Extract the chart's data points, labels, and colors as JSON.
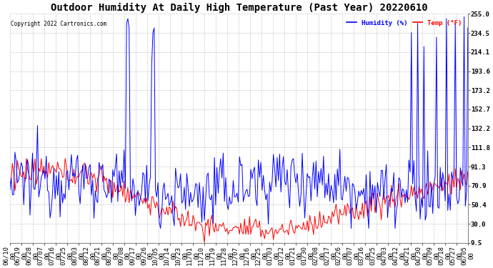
{
  "title": "Outdoor Humidity At Daily High Temperature (Past Year) 20220610",
  "copyright": "Copyright 2022 Cartronics.com",
  "legend_humidity": "Humidity (%)",
  "legend_temp": "Temp (°F)",
  "humidity_color": "blue",
  "temp_color": "red",
  "background_color": "white",
  "grid_color": "#bbbbbb",
  "ylim": [
    9.5,
    255.0
  ],
  "yticks": [
    9.5,
    30.0,
    50.4,
    70.9,
    91.3,
    111.8,
    132.2,
    152.7,
    173.2,
    193.6,
    214.1,
    234.5,
    255.0
  ],
  "ytick_labels": [
    "9.5",
    "30.0",
    "50.4",
    "70.9",
    "91.3",
    "111.8",
    "132.2",
    "152.7",
    "173.2",
    "193.6",
    "214.1",
    "234.5",
    "255.0"
  ],
  "n_points": 366,
  "title_fontsize": 10,
  "tick_fontsize": 6.5,
  "figsize": [
    6.9,
    3.75
  ],
  "dpi": 100,
  "x_labels": [
    "06/10\n00",
    "06/19\n00",
    "06/28\n00",
    "07/07\n00",
    "07/16\n00",
    "07/25\n00",
    "08/03\n00",
    "08/12\n00",
    "08/21\n00",
    "08/30\n00",
    "09/08\n00",
    "09/17\n00",
    "09/26\n00",
    "10/05\n00",
    "10/14\n00",
    "10/23\n00",
    "11/01\n00",
    "11/10\n00",
    "11/19\n00",
    "11/28\n00",
    "12/07\n00",
    "12/16\n00",
    "12/25\n00",
    "01/03\n00",
    "01/12\n00",
    "01/21\n00",
    "01/30\n00",
    "02/08\n00",
    "02/17\n00",
    "02/26\n00",
    "03/07\n00",
    "03/16\n00",
    "03/25\n00",
    "04/03\n00",
    "04/12\n00",
    "04/21\n00",
    "04/30\n00",
    "05/09\n00",
    "05/18\n00",
    "05/27\n00",
    "06/05\n00"
  ]
}
